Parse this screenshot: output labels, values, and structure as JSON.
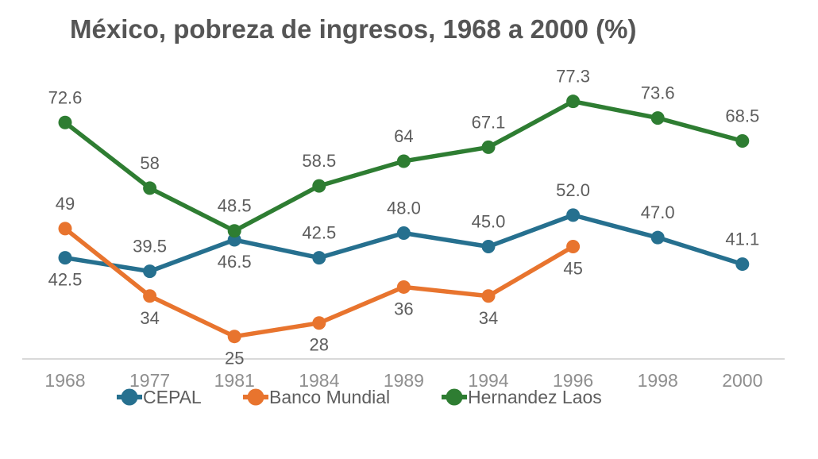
{
  "title": "México, pobreza de ingresos, 1968 a 2000 (%)",
  "colors": {
    "cepal": "#26708f",
    "banco_mundial": "#e8742e",
    "hernandez_laos": "#2e7d32",
    "axis_line": "#d9d9d9",
    "title_text": "#555555",
    "data_label_text": "#5d5d5d",
    "tick_text": "#8f8f8f",
    "legend_text": "#5e5e5e",
    "background": "#ffffff"
  },
  "chart_data": {
    "type": "line",
    "title": "México, pobreza de ingresos, 1968 a 2000 (%)",
    "categories": [
      "1968",
      "1977",
      "1981",
      "1984",
      "1989",
      "1994",
      "1996",
      "1998",
      "2000"
    ],
    "series": [
      {
        "name": "CEPAL",
        "color": "#26708f",
        "values": [
          42.5,
          39.5,
          46.5,
          42.5,
          48.0,
          45.0,
          52.0,
          47.0,
          41.1
        ],
        "labels": [
          "42.5",
          "39.5",
          "46.5",
          "42.5",
          "48.0",
          "45.0",
          "52.0",
          "47.0",
          "41.1"
        ],
        "label_side": [
          "below",
          "above",
          "below",
          "above",
          "above",
          "above",
          "above",
          "above",
          "above"
        ]
      },
      {
        "name": "Banco Mundial",
        "color": "#e8742e",
        "values": [
          49,
          34,
          25,
          28,
          36,
          34,
          45,
          null,
          null
        ],
        "labels": [
          "49",
          "34",
          "25",
          "28",
          "36",
          "34",
          "45",
          "",
          ""
        ],
        "label_side": [
          "above",
          "below",
          "below",
          "below",
          "below",
          "below",
          "below",
          "",
          ""
        ]
      },
      {
        "name": "Hernandez Laos",
        "color": "#2e7d32",
        "values": [
          72.6,
          58,
          48.5,
          58.5,
          64,
          67.1,
          77.3,
          73.6,
          68.5
        ],
        "labels": [
          "72.6",
          "58",
          "48.5",
          "58.5",
          "64",
          "67.1",
          "77.3",
          "73.6",
          "68.5"
        ],
        "label_side": [
          "above",
          "above",
          "above",
          "above",
          "above",
          "above",
          "above",
          "above",
          "above"
        ]
      }
    ],
    "xlabel": "",
    "ylabel": "",
    "ylim": [
      20,
      85
    ],
    "grid": false,
    "marker": "circle",
    "legend_position": "bottom"
  }
}
